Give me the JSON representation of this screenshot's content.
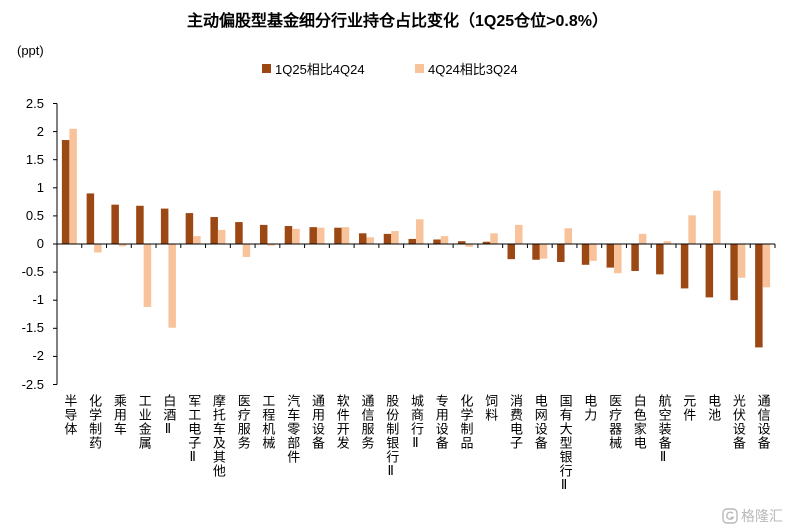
{
  "chart_data": {
    "type": "bar",
    "title": "主动偏股型基金细分行业持仓占比变化（1Q25仓位>0.8%）",
    "ylabel": "(ppt)",
    "xlabel": "",
    "ylim": [
      -2.5,
      2.5
    ],
    "yticks": [
      2.5,
      2,
      1.5,
      1,
      0.5,
      0,
      -0.5,
      -1,
      -1.5,
      -2,
      -2.5
    ],
    "grid": false,
    "legend": "top-center",
    "categories": [
      "半导体",
      "化学制药",
      "乘用车",
      "工业金属",
      "白酒Ⅱ",
      "军工电子Ⅱ",
      "摩托车及其他",
      "医疗服务",
      "工程机械",
      "汽车零部件",
      "通用设备",
      "软件开发",
      "通信服务",
      "股份制银行Ⅱ",
      "城商行Ⅱ",
      "专用设备",
      "化学制品",
      "饲料",
      "消费电子",
      "电网设备",
      "国有大型银行Ⅱ",
      "电力",
      "医疗器械",
      "白色家电",
      "航空装备Ⅱ",
      "元件",
      "电池",
      "光伏设备",
      "通信设备"
    ],
    "series": [
      {
        "name": "1Q25相比4Q24",
        "color": "#9C4815",
        "values": [
          1.85,
          0.9,
          0.7,
          0.68,
          0.63,
          0.55,
          0.48,
          0.39,
          0.34,
          0.32,
          0.3,
          0.29,
          0.19,
          0.18,
          0.09,
          0.08,
          0.05,
          0.04,
          -0.27,
          -0.28,
          -0.32,
          -0.37,
          -0.42,
          -0.48,
          -0.54,
          -0.79,
          -0.95,
          -1.0,
          -1.84
        ]
      },
      {
        "name": "4Q24相比3Q24",
        "color": "#F8C39A",
        "values": [
          2.05,
          -0.15,
          -0.04,
          -1.12,
          -1.49,
          0.14,
          0.25,
          -0.23,
          -0.03,
          0.27,
          0.29,
          0.3,
          0.12,
          0.23,
          0.44,
          0.14,
          -0.05,
          0.19,
          0.34,
          -0.26,
          0.28,
          -0.3,
          -0.52,
          0.18,
          0.05,
          0.51,
          0.95,
          -0.6,
          -0.77
        ]
      }
    ]
  },
  "watermark": {
    "text": "格隆汇",
    "color": "#b9b9b9"
  }
}
